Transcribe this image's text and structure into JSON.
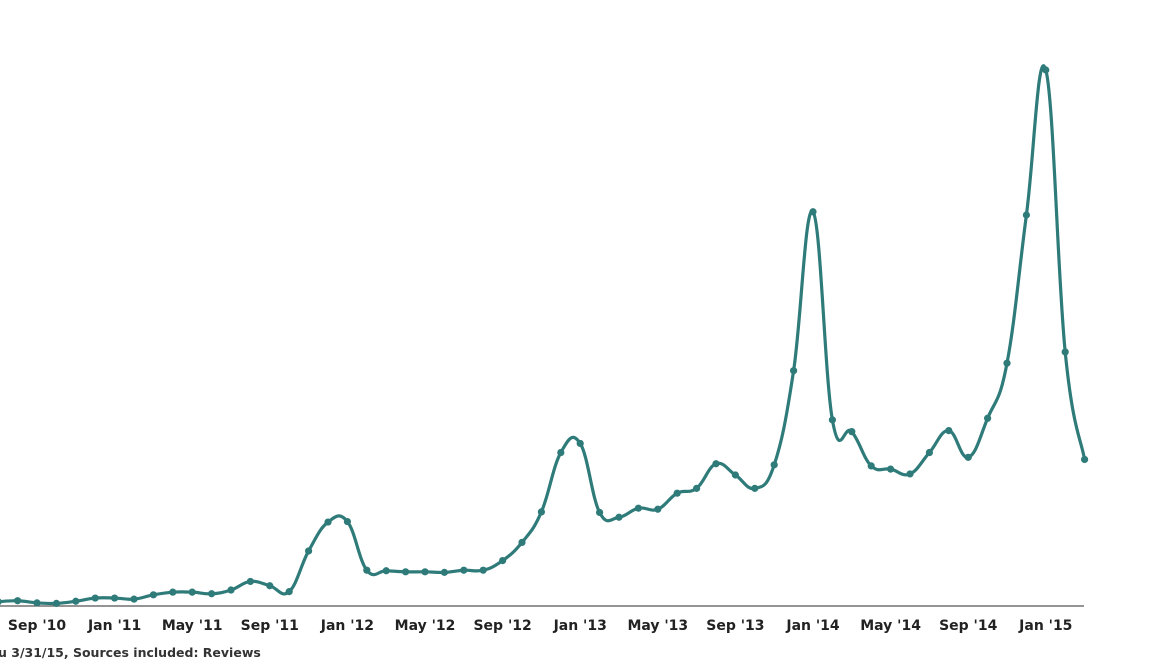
{
  "chart_data": {
    "type": "line",
    "title": "",
    "xlabel": "",
    "ylabel": "",
    "y_axis_shown": false,
    "ylim": [
      0,
      100
    ],
    "grid": false,
    "color": "#2e7b7a",
    "x": [
      "Jul '10",
      "Aug '10",
      "Sep '10",
      "Oct '10",
      "Nov '10",
      "Dec '10",
      "Jan '11",
      "Feb '11",
      "Mar '11",
      "Apr '11",
      "May '11",
      "Jun '11",
      "Jul '11",
      "Aug '11",
      "Sep '11",
      "Oct '11",
      "Nov '11",
      "Dec '11",
      "Jan '12",
      "Feb '12",
      "Mar '12",
      "Apr '12",
      "May '12",
      "Jun '12",
      "Jul '12",
      "Aug '12",
      "Sep '12",
      "Oct '12",
      "Nov '12",
      "Dec '12",
      "Jan '13",
      "Feb '13",
      "Mar '13",
      "Apr '13",
      "May '13",
      "Jun '13",
      "Jul '13",
      "Aug '13",
      "Sep '13",
      "Oct '13",
      "Nov '13",
      "Dec '13",
      "Jan '14",
      "Feb '14",
      "Mar '14",
      "Apr '14",
      "May '14",
      "Jun '14",
      "Jul '14",
      "Aug '14",
      "Sep '14",
      "Oct '14",
      "Nov '14",
      "Dec '14",
      "Jan '15",
      "Feb '15",
      "Mar '15"
    ],
    "values": [
      0.6,
      0.8,
      0.4,
      0.3,
      0.7,
      1.3,
      1.3,
      1.1,
      1.9,
      2.4,
      2.4,
      2.1,
      2.8,
      4.4,
      3.6,
      2.5,
      10.1,
      15.5,
      15.6,
      6.5,
      6.4,
      6.2,
      6.2,
      6.1,
      6.5,
      6.5,
      8.3,
      11.7,
      17.4,
      28.5,
      30.2,
      17.3,
      16.4,
      18.1,
      17.9,
      20.9,
      21.8,
      26.4,
      24.3,
      21.8,
      26.2,
      43.8,
      73.5,
      34.6,
      32.4,
      26.0,
      25.4,
      24.5,
      28.5,
      32.6,
      27.6,
      34.9,
      45.2,
      72.9,
      100,
      47.3,
      27.2
    ],
    "tick_labels": [
      "Sep '10",
      "Jan '11",
      "May '11",
      "Sep '11",
      "Jan '12",
      "May '12",
      "Sep '12",
      "Jan '13",
      "May '13",
      "Sep '13",
      "Jan '14",
      "May '14",
      "Sep '14",
      "Jan '15"
    ]
  },
  "footer": "u 3/31/15, Sources included: Reviews"
}
